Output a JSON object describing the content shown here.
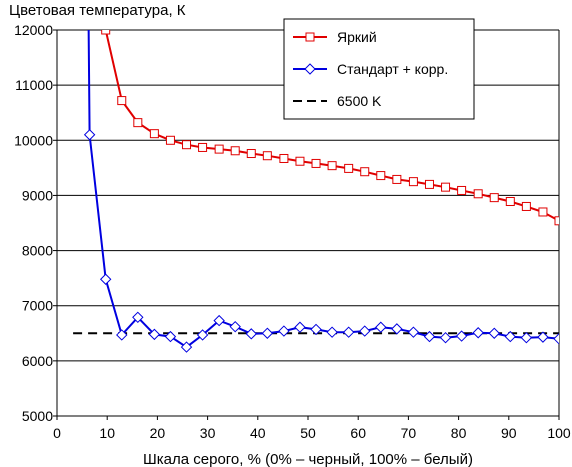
{
  "chart_data": {
    "type": "line",
    "title": "",
    "ylabel": "Цветовая температура, К",
    "xlabel": "Шкала серого, % (0% – черный, 100% – белый)",
    "xlim": [
      0,
      100
    ],
    "ylim": [
      5000,
      12000
    ],
    "xticks": [
      0,
      10,
      20,
      30,
      40,
      50,
      60,
      70,
      80,
      90,
      100
    ],
    "yticks": [
      5000,
      6000,
      7000,
      8000,
      9000,
      10000,
      11000,
      12000
    ],
    "grid": "horizontal",
    "legend_position": "top-right",
    "series": [
      {
        "name": "Яркий",
        "color": "#e00000",
        "marker": "square",
        "x": [
          9.7,
          12.9,
          16.1,
          19.4,
          22.6,
          25.8,
          29.0,
          32.3,
          35.5,
          38.7,
          41.9,
          45.2,
          48.4,
          51.6,
          54.8,
          58.1,
          61.3,
          64.5,
          67.7,
          71.0,
          74.2,
          77.4,
          80.6,
          83.9,
          87.1,
          90.3,
          93.5,
          96.8,
          100
        ],
        "y": [
          12000,
          10720,
          10320,
          10120,
          10000,
          9920,
          9870,
          9840,
          9810,
          9760,
          9720,
          9670,
          9620,
          9580,
          9540,
          9490,
          9430,
          9360,
          9290,
          9250,
          9200,
          9150,
          9090,
          9030,
          8960,
          8890,
          8800,
          8700,
          8540
        ]
      },
      {
        "name": "Стандарт + корр.",
        "color": "#0000e0",
        "marker": "diamond",
        "x": [
          6.5,
          9.7,
          12.9,
          16.1,
          19.4,
          22.6,
          25.8,
          29.0,
          32.3,
          35.5,
          38.7,
          41.9,
          45.2,
          48.4,
          51.6,
          54.8,
          58.1,
          61.3,
          64.5,
          67.7,
          71.0,
          74.2,
          77.4,
          80.6,
          83.9,
          87.1,
          90.3,
          93.5,
          96.8,
          100
        ],
        "y": [
          10100,
          7480,
          6470,
          6790,
          6480,
          6440,
          6250,
          6470,
          6730,
          6620,
          6490,
          6500,
          6540,
          6610,
          6570,
          6520,
          6520,
          6540,
          6610,
          6580,
          6520,
          6440,
          6420,
          6450,
          6510,
          6500,
          6440,
          6420,
          6430,
          6400
        ]
      },
      {
        "name": "6500 K",
        "color": "#000000",
        "marker": "none",
        "dash": "dashed",
        "x": [
          3.2,
          100
        ],
        "y": [
          6500,
          6500
        ]
      }
    ]
  }
}
